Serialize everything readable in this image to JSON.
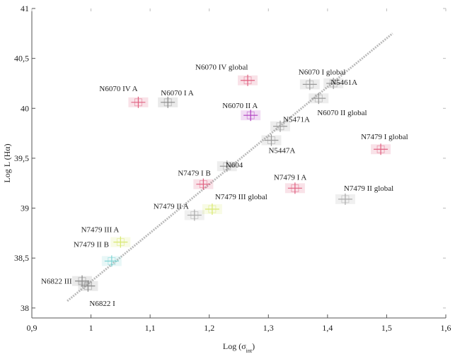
{
  "chart_data": {
    "type": "scatter",
    "title": "",
    "xlabel": "Log (σ",
    "xlabel_sub": "int",
    "xlabel_end": ")",
    "ylabel": "Log L (Hα)",
    "xlim": [
      0.9,
      1.6
    ],
    "ylim": [
      37.9,
      41.0
    ],
    "xticks": [
      {
        "value": 0.9,
        "label": "0,9"
      },
      {
        "value": 1.0,
        "label": "1"
      },
      {
        "value": 1.1,
        "label": "1,1"
      },
      {
        "value": 1.2,
        "label": "1,2"
      },
      {
        "value": 1.3,
        "label": "1,3"
      },
      {
        "value": 1.4,
        "label": "1,4"
      },
      {
        "value": 1.5,
        "label": "1,5"
      },
      {
        "value": 1.6,
        "label": "1,6"
      }
    ],
    "yticks": [
      {
        "value": 38.0,
        "label": "38"
      },
      {
        "value": 38.5,
        "label": "38,5"
      },
      {
        "value": 39.0,
        "label": "39"
      },
      {
        "value": 39.5,
        "label": "39,5"
      },
      {
        "value": 40.0,
        "label": "40"
      },
      {
        "value": 40.5,
        "label": "40,5"
      },
      {
        "value": 41.0,
        "label": "41"
      }
    ],
    "grid": false,
    "fit_line": {
      "x": [
        0.96,
        1.51
      ],
      "y": [
        38.07,
        40.75
      ],
      "color": "#aaaaaa",
      "style": "dashed"
    },
    "points": [
      {
        "label": "N6822 III",
        "x": 0.985,
        "y": 38.27,
        "color": "#888888"
      },
      {
        "label": "N6822 I",
        "x": 0.995,
        "y": 38.22,
        "color": "#888888"
      },
      {
        "label": "N7479 II B",
        "x": 1.035,
        "y": 38.47,
        "color": "#7fd4d4"
      },
      {
        "label": "N7479 III A",
        "x": 1.05,
        "y": 38.66,
        "color": "#d8e870"
      },
      {
        "label": "N6070 IV A",
        "x": 1.08,
        "y": 40.06,
        "color": "#e06080"
      },
      {
        "label": "N6070 I A",
        "x": 1.13,
        "y": 40.06,
        "color": "#888888"
      },
      {
        "label": "N7479 II A",
        "x": 1.175,
        "y": 38.93,
        "color": "#aaaaaa"
      },
      {
        "label": "N7479 I B",
        "x": 1.19,
        "y": 39.24,
        "color": "#e06080"
      },
      {
        "label": "N7479 III global",
        "x": 1.205,
        "y": 38.99,
        "color": "#d8e870"
      },
      {
        "label": "N604",
        "x": 1.23,
        "y": 39.42,
        "color": "#999999"
      },
      {
        "label": "N6070 IV global",
        "x": 1.265,
        "y": 40.28,
        "color": "#e06080"
      },
      {
        "label": "N6070 II A",
        "x": 1.27,
        "y": 39.93,
        "color": "#b040c0"
      },
      {
        "label": "N5447A",
        "x": 1.305,
        "y": 39.68,
        "color": "#999999"
      },
      {
        "label": "N5471A",
        "x": 1.32,
        "y": 39.82,
        "color": "#999999"
      },
      {
        "label": "N7479 I A",
        "x": 1.345,
        "y": 39.2,
        "color": "#e06080"
      },
      {
        "label": "N6070 I global",
        "x": 1.37,
        "y": 40.24,
        "color": "#999999"
      },
      {
        "label": "N6070 II global",
        "x": 1.385,
        "y": 40.1,
        "color": "#999999"
      },
      {
        "label": "N5461A",
        "x": 1.41,
        "y": 40.25,
        "color": "#999999"
      },
      {
        "label": "N7479 II global",
        "x": 1.43,
        "y": 39.09,
        "color": "#aaaaaa"
      },
      {
        "label": "N7479 I global",
        "x": 1.49,
        "y": 39.59,
        "color": "#e06080"
      }
    ]
  }
}
